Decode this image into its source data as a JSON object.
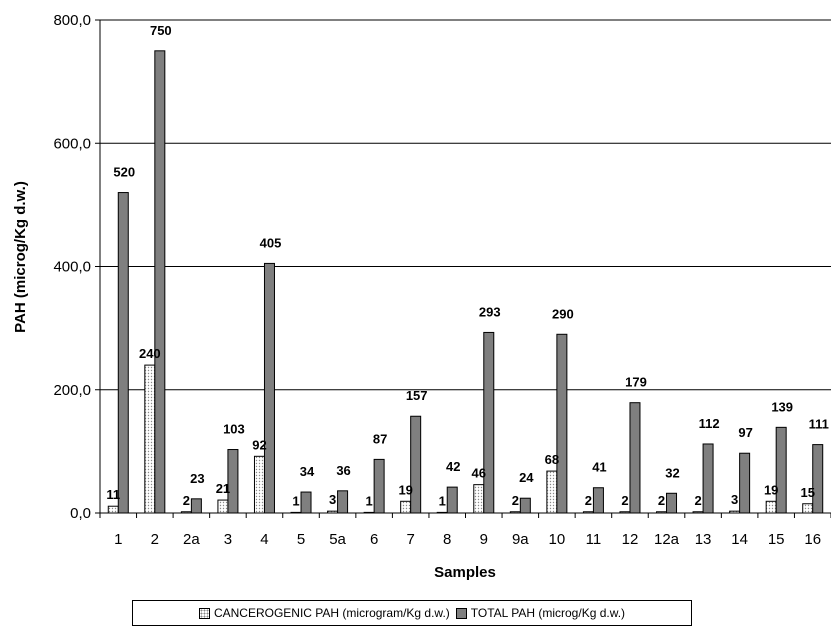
{
  "chart_data": {
    "type": "bar",
    "title": "",
    "xlabel": "Samples",
    "ylabel": "PAH (microg/Kg d.w.)",
    "ylim": [
      0,
      800
    ],
    "yticks": [
      "0,0",
      "200,0",
      "400,0",
      "600,0",
      "800,0"
    ],
    "ytick_values": [
      0,
      200,
      400,
      600,
      800
    ],
    "grid": "horizontal",
    "legend_position": "bottom",
    "categories": [
      "1",
      "2",
      "2a",
      "3",
      "4",
      "5",
      "5a",
      "6",
      "7",
      "8",
      "9",
      "9a",
      "10",
      "11",
      "12",
      "12a",
      "13",
      "14",
      "15",
      "16"
    ],
    "series": [
      {
        "name": "CANCEROGENIC PAH (microgram/Kg d.w.)",
        "color": "#ffffff",
        "pattern": "dotted",
        "values": [
          11,
          240,
          2,
          21,
          92,
          1,
          3,
          1,
          19,
          1,
          46,
          2,
          68,
          2,
          2,
          2,
          2,
          3,
          19,
          15
        ],
        "labels": [
          "11",
          "240",
          "2",
          "21",
          "92",
          "1",
          "3",
          "1",
          "19",
          "1",
          "46",
          "2",
          "68",
          "2",
          "2",
          "2",
          "2",
          "3",
          "19",
          "15"
        ]
      },
      {
        "name": "TOTAL PAH (microg/Kg d.w.)",
        "color": "#7f7f7f",
        "values": [
          520,
          750,
          23,
          103,
          405,
          34,
          36,
          87,
          157,
          42,
          293,
          24,
          290,
          41,
          179,
          32,
          112,
          97,
          139,
          111
        ],
        "labels": [
          "520",
          "750",
          "23",
          "103",
          "405",
          "34",
          "36",
          "87",
          "157",
          "42",
          "293",
          "24",
          "290",
          "41",
          "179",
          "32",
          "112",
          "97",
          "139",
          "111"
        ]
      }
    ]
  }
}
